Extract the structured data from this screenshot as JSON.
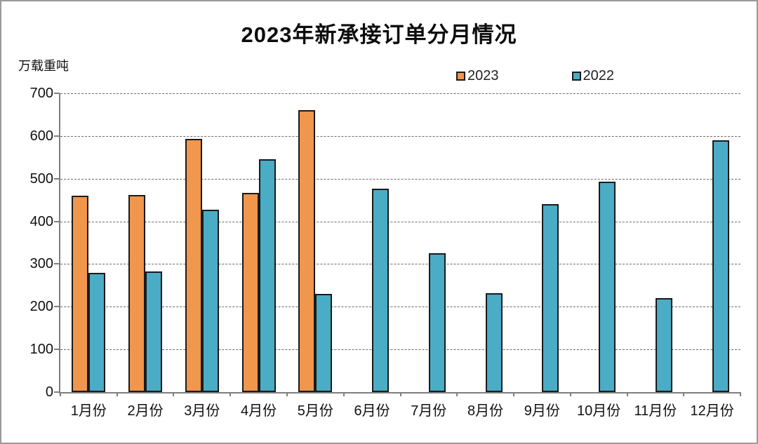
{
  "window": {
    "background": "#ffffff",
    "border_color": "#9a9a9a"
  },
  "chart_data": {
    "type": "bar",
    "title": "2023年新承接订单分月情况",
    "ylabel": "万载重吨",
    "xlabel": "",
    "categories": [
      "1月份",
      "2月份",
      "3月份",
      "4月份",
      "5月份",
      "6月份",
      "7月份",
      "8月份",
      "9月份",
      "10月份",
      "11月份",
      "12月份"
    ],
    "series": [
      {
        "name": "2023",
        "color": "#F0964D",
        "values": [
          460,
          462,
          593,
          467,
          660,
          null,
          null,
          null,
          null,
          null,
          null,
          null
        ]
      },
      {
        "name": "2022",
        "color": "#4AACC5",
        "values": [
          280,
          283,
          428,
          546,
          230,
          476,
          325,
          232,
          440,
          493,
          220,
          590
        ]
      }
    ],
    "ylim": [
      0,
      700
    ],
    "yticks": [
      0,
      100,
      200,
      300,
      400,
      500,
      600,
      700
    ],
    "grid": "horizontal-dashed",
    "legend_position": "top-right",
    "bar_border_color": "#1a1a1a"
  }
}
